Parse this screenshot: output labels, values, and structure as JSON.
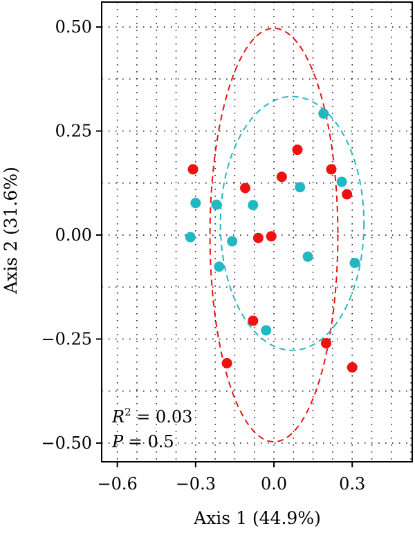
{
  "chart_data": {
    "type": "scatter",
    "title": "",
    "xlabel": "Axis 1 (44.9%)",
    "ylabel": "Axis 2 (31.6%)",
    "xlim": [
      -0.66,
      0.53
    ],
    "ylim": [
      -0.545,
      0.56
    ],
    "x_ticks": [
      -0.6,
      -0.3,
      0.0,
      0.3
    ],
    "x_tick_labels": [
      "−0.6",
      "−0.3",
      "0.0",
      "0.3"
    ],
    "y_ticks": [
      0.5,
      0.25,
      0.0,
      -0.25,
      -0.5
    ],
    "y_tick_labels": [
      "0.50",
      "0.25",
      "0.00",
      "−0.25",
      "−0.50"
    ],
    "grid": true,
    "series": [
      {
        "color": "#ee1111",
        "points": [
          [
            -0.31,
            0.158
          ],
          [
            0.09,
            0.205
          ],
          [
            0.03,
            0.14
          ],
          [
            -0.11,
            0.113
          ],
          [
            0.22,
            0.158
          ],
          [
            0.28,
            0.098
          ],
          [
            -0.06,
            -0.007
          ],
          [
            -0.01,
            -0.003
          ],
          [
            -0.08,
            -0.206
          ],
          [
            0.2,
            -0.26
          ],
          [
            -0.18,
            -0.308
          ],
          [
            0.3,
            -0.318
          ]
        ],
        "ellipse": {
          "center": [
            0.0,
            0.0
          ],
          "radii": [
            0.245,
            0.497
          ]
        }
      },
      {
        "color": "#22b8c2",
        "points": [
          [
            0.19,
            0.292
          ],
          [
            0.26,
            0.128
          ],
          [
            0.1,
            0.115
          ],
          [
            -0.3,
            0.077
          ],
          [
            -0.22,
            0.073
          ],
          [
            -0.08,
            0.072
          ],
          [
            -0.32,
            -0.005
          ],
          [
            -0.16,
            -0.015
          ],
          [
            -0.21,
            -0.076
          ],
          [
            0.13,
            -0.052
          ],
          [
            0.31,
            -0.067
          ],
          [
            -0.03,
            -0.229
          ]
        ],
        "ellipse": {
          "center": [
            0.07,
            0.028
          ],
          "radii": [
            0.275,
            0.305
          ]
        }
      }
    ],
    "annotations": {
      "r2_symbol": "R",
      "r2_sup": "2",
      "r2_value": " = 0.03",
      "p_symbol": "P",
      "p_value": " = 0.5"
    }
  }
}
